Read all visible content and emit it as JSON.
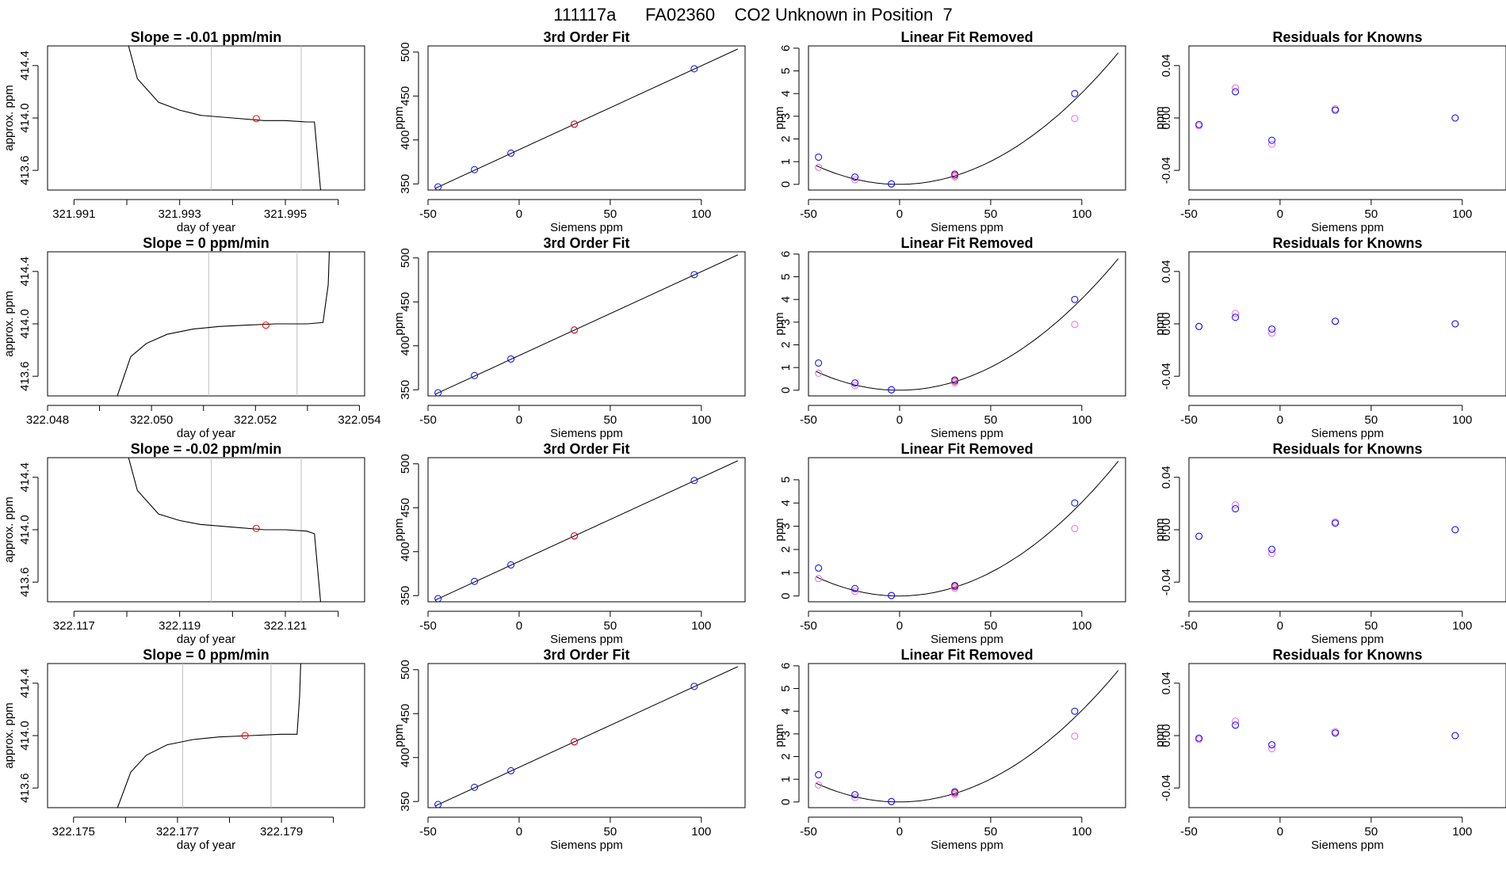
{
  "figure": {
    "title": "111117a      FA02360    CO2 Unknown in Position  7"
  },
  "colors": {
    "axis": "#000000",
    "trace": "#000000",
    "fit": "#000000",
    "vline": "#bfbfbf",
    "point": "#0000ff",
    "marker": "#ff0000",
    "alt_point": "#ee66ee"
  },
  "chart_data": [
    {
      "type": "line",
      "row": 1,
      "col": 1,
      "title": "Slope =  -0.01  ppm/min",
      "xlabel": "day of year",
      "ylabel": "approx. ppm",
      "xlim": [
        321.9905,
        321.9965
      ],
      "ylim": [
        413.45,
        414.55
      ],
      "xticks": [
        321.991,
        321.992,
        321.993,
        321.994,
        321.995,
        321.996
      ],
      "xtick_labels": [
        "321.991",
        "",
        "321.993",
        "",
        "321.995",
        ""
      ],
      "yticks": [
        413.6,
        414.0,
        414.4
      ],
      "ytick_labels": [
        "413.6",
        "414.0",
        "414.4"
      ],
      "vlines": [
        321.9936,
        321.9953
      ],
      "series": [
        {
          "x": [
            321.9918,
            321.9922,
            321.9926,
            321.993,
            321.9934,
            321.994,
            321.9946,
            321.995,
            321.9954,
            321.99555,
            321.9957
          ],
          "y": [
            414.9,
            414.3,
            414.12,
            414.06,
            414.02,
            414.0,
            413.98,
            413.98,
            413.97,
            413.97,
            413.3
          ]
        }
      ],
      "marker": {
        "x": 321.99445,
        "y": 413.995
      }
    },
    {
      "type": "line",
      "row": 2,
      "col": 1,
      "title": "Slope =  0  ppm/min",
      "xlabel": "day of year",
      "ylabel": "approx. ppm",
      "xlim": [
        322.048,
        322.0541
      ],
      "ylim": [
        413.45,
        414.55
      ],
      "xticks": [
        322.048,
        322.049,
        322.05,
        322.051,
        322.052,
        322.053,
        322.054
      ],
      "xtick_labels": [
        "322.048",
        "",
        "322.050",
        "",
        "322.052",
        "",
        "322.054"
      ],
      "yticks": [
        413.6,
        414.0,
        414.4
      ],
      "ytick_labels": [
        "413.6",
        "414.0",
        "414.4"
      ],
      "vlines": [
        322.0511,
        322.0528
      ],
      "series": [
        {
          "x": [
            322.0493,
            322.0496,
            322.0499,
            322.0503,
            322.0508,
            322.0513,
            322.0518,
            322.0524,
            322.053,
            322.0533,
            322.0534,
            322.05345
          ],
          "y": [
            413.4,
            413.75,
            413.85,
            413.92,
            413.96,
            413.98,
            413.99,
            414.0,
            414.0,
            414.01,
            414.3,
            414.9
          ]
        }
      ],
      "marker": {
        "x": 322.0522,
        "y": 413.99
      }
    },
    {
      "type": "line",
      "row": 3,
      "col": 1,
      "title": "Slope =  -0.02  ppm/min",
      "xlabel": "day of year",
      "ylabel": "approx. ppm",
      "xlim": [
        322.1165,
        322.1225
      ],
      "ylim": [
        413.45,
        414.55
      ],
      "xticks": [
        322.117,
        322.118,
        322.119,
        322.12,
        322.121,
        322.122
      ],
      "xtick_labels": [
        "322.117",
        "",
        "322.119",
        "",
        "322.121",
        ""
      ],
      "yticks": [
        413.6,
        414.0,
        414.4
      ],
      "ytick_labels": [
        "413.6",
        "414.0",
        "414.4"
      ],
      "vlines": [
        322.1196,
        322.1213
      ],
      "series": [
        {
          "x": [
            322.1178,
            322.1182,
            322.1186,
            322.119,
            322.1194,
            322.12,
            322.1206,
            322.121,
            322.1214,
            322.12155,
            322.1217
          ],
          "y": [
            414.9,
            414.3,
            414.12,
            414.07,
            414.04,
            414.02,
            414.0,
            414.0,
            413.99,
            413.97,
            413.3
          ]
        }
      ],
      "marker": {
        "x": 322.12045,
        "y": 414.01
      }
    },
    {
      "type": "line",
      "row": 4,
      "col": 1,
      "title": "Slope =  0  ppm/min",
      "xlabel": "day of year",
      "ylabel": "approx. ppm",
      "xlim": [
        322.1745,
        322.1806
      ],
      "ylim": [
        413.45,
        414.55
      ],
      "xticks": [
        322.175,
        322.176,
        322.177,
        322.178,
        322.179,
        322.18
      ],
      "xtick_labels": [
        "322.175",
        "",
        "322.177",
        "",
        "322.179",
        ""
      ],
      "yticks": [
        413.6,
        414.0,
        414.4
      ],
      "ytick_labels": [
        "413.6",
        "414.0",
        "414.4"
      ],
      "vlines": [
        322.1771,
        322.1788
      ],
      "series": [
        {
          "x": [
            322.1758,
            322.1761,
            322.1764,
            322.1768,
            322.1773,
            322.1778,
            322.1784,
            322.179,
            322.1793,
            322.17935,
            322.1794
          ],
          "y": [
            413.4,
            413.72,
            413.85,
            413.93,
            413.97,
            413.99,
            414.0,
            414.01,
            414.01,
            414.3,
            414.9
          ]
        }
      ],
      "marker": {
        "x": 322.1783,
        "y": 414.0
      }
    },
    {
      "type": "scatter",
      "row": 1,
      "col": 2,
      "title": "3rd Order Fit",
      "xlabel": "Siemens ppm",
      "ylabel": "ppm",
      "xlim": [
        -50,
        124
      ],
      "ylim": [
        343,
        507
      ],
      "xticks": [
        -50,
        0,
        50,
        100
      ],
      "xtick_labels": [
        "-50",
        "0",
        "50",
        "100"
      ],
      "yticks": [
        350,
        400,
        450,
        500
      ],
      "ytick_labels": [
        "350",
        "400",
        "450",
        "500"
      ],
      "x": [
        -44.5,
        -24.5,
        -4.5,
        30.3,
        96.1
      ],
      "y": [
        346.6,
        366.2,
        385.0,
        418.0,
        481.0
      ],
      "fit_line": {
        "x": [
          -46,
          120
        ],
        "y": [
          345.0,
          503.5
        ]
      },
      "marker": {
        "x": 30.3,
        "y": 418.0
      }
    },
    {
      "type": "scatter",
      "row": 2,
      "col": 2,
      "title": "3rd Order Fit",
      "xlabel": "Siemens ppm",
      "ylabel": "ppm",
      "xlim": [
        -50,
        124
      ],
      "ylim": [
        343,
        507
      ],
      "xticks": [
        -50,
        0,
        50,
        100
      ],
      "xtick_labels": [
        "-50",
        "0",
        "50",
        "100"
      ],
      "yticks": [
        350,
        400,
        450,
        500
      ],
      "ytick_labels": [
        "350",
        "400",
        "450",
        "500"
      ],
      "x": [
        -44.5,
        -24.5,
        -4.5,
        30.3,
        96.1
      ],
      "y": [
        346.6,
        366.2,
        385.0,
        418.0,
        481.0
      ],
      "fit_line": {
        "x": [
          -46,
          120
        ],
        "y": [
          345.0,
          503.5
        ]
      },
      "marker": {
        "x": 30.3,
        "y": 418.0
      }
    },
    {
      "type": "scatter",
      "row": 3,
      "col": 2,
      "title": "3rd Order Fit",
      "xlabel": "Siemens ppm",
      "ylabel": "ppm",
      "xlim": [
        -50,
        124
      ],
      "ylim": [
        343,
        507
      ],
      "xticks": [
        -50,
        0,
        50,
        100
      ],
      "xtick_labels": [
        "-50",
        "0",
        "50",
        "100"
      ],
      "yticks": [
        350,
        400,
        450,
        500
      ],
      "ytick_labels": [
        "350",
        "400",
        "450",
        "500"
      ],
      "x": [
        -44.5,
        -24.5,
        -4.5,
        30.3,
        96.1
      ],
      "y": [
        346.6,
        366.2,
        385.0,
        418.0,
        481.0
      ],
      "fit_line": {
        "x": [
          -46,
          120
        ],
        "y": [
          345.0,
          503.5
        ]
      },
      "marker": {
        "x": 30.3,
        "y": 418.0
      }
    },
    {
      "type": "scatter",
      "row": 4,
      "col": 2,
      "title": "3rd Order Fit",
      "xlabel": "Siemens ppm",
      "ylabel": "ppm",
      "xlim": [
        -50,
        124
      ],
      "ylim": [
        343,
        507
      ],
      "xticks": [
        -50,
        0,
        50,
        100
      ],
      "xtick_labels": [
        "-50",
        "0",
        "50",
        "100"
      ],
      "yticks": [
        350,
        400,
        450,
        500
      ],
      "ytick_labels": [
        "350",
        "400",
        "450",
        "500"
      ],
      "x": [
        -44.5,
        -24.5,
        -4.5,
        30.3,
        96.1
      ],
      "y": [
        346.6,
        366.2,
        385.0,
        418.0,
        481.0
      ],
      "fit_line": {
        "x": [
          -46,
          120
        ],
        "y": [
          345.0,
          503.5
        ]
      },
      "marker": {
        "x": 30.3,
        "y": 418.0
      }
    },
    {
      "type": "scatter",
      "row": 1,
      "col": 3,
      "title": "Linear Fit Removed",
      "xlabel": "Siemens ppm",
      "ylabel": "ppm",
      "xlim": [
        -50,
        124
      ],
      "ylim": [
        -0.25,
        6.1
      ],
      "xticks": [
        -50,
        0,
        50,
        100
      ],
      "xtick_labels": [
        "-50",
        "0",
        "50",
        "100"
      ],
      "yticks": [
        0,
        1,
        2,
        3,
        4,
        5,
        6
      ],
      "ytick_labels": [
        "0",
        "1",
        "2",
        "3",
        "4",
        "5",
        "6"
      ],
      "x": [
        -44.5,
        -24.5,
        -4.5,
        30.3,
        96.1
      ],
      "y": [
        1.2,
        0.32,
        0.02,
        0.45,
        4.0
      ],
      "x2": [
        -44.5,
        -24.5,
        -4.5,
        30.3,
        96.1
      ],
      "y2": [
        0.75,
        0.2,
        0.02,
        0.33,
        2.9
      ],
      "curve_coef": [
        0.0004,
        0.0003,
        0.0
      ],
      "curve_xlim": [
        -46,
        120
      ],
      "marker": {
        "x": 30.3,
        "y": 0.4
      }
    },
    {
      "type": "scatter",
      "row": 2,
      "col": 3,
      "title": "Linear Fit Removed",
      "xlabel": "Siemens ppm",
      "ylabel": "ppm",
      "xlim": [
        -50,
        124
      ],
      "ylim": [
        -0.25,
        6.1
      ],
      "xticks": [
        -50,
        0,
        50,
        100
      ],
      "xtick_labels": [
        "-50",
        "0",
        "50",
        "100"
      ],
      "yticks": [
        0,
        1,
        2,
        3,
        4,
        5,
        6
      ],
      "ytick_labels": [
        "0",
        "1",
        "2",
        "3",
        "4",
        "5",
        "6"
      ],
      "x": [
        -44.5,
        -24.5,
        -4.5,
        30.3,
        96.1
      ],
      "y": [
        1.2,
        0.32,
        0.02,
        0.45,
        4.0
      ],
      "x2": [
        -44.5,
        -24.5,
        -4.5,
        30.3,
        96.1
      ],
      "y2": [
        0.75,
        0.2,
        0.02,
        0.33,
        2.9
      ],
      "curve_coef": [
        0.0004,
        0.0003,
        0.0
      ],
      "curve_xlim": [
        -46,
        120
      ],
      "marker": {
        "x": 30.3,
        "y": 0.4
      }
    },
    {
      "type": "scatter",
      "row": 3,
      "col": 3,
      "title": "Linear Fit Removed",
      "xlabel": "Siemens ppm",
      "ylabel": "ppm",
      "xlim": [
        -50,
        124
      ],
      "ylim": [
        -0.25,
        5.95
      ],
      "xticks": [
        -50,
        0,
        50,
        100
      ],
      "xtick_labels": [
        "-50",
        "0",
        "50",
        "100"
      ],
      "yticks": [
        0,
        1,
        2,
        3,
        4,
        5
      ],
      "ytick_labels": [
        "0",
        "1",
        "2",
        "3",
        "4",
        "5"
      ],
      "x": [
        -44.5,
        -24.5,
        -4.5,
        30.3,
        96.1
      ],
      "y": [
        1.2,
        0.32,
        0.02,
        0.45,
        4.0
      ],
      "x2": [
        -44.5,
        -24.5,
        -4.5,
        30.3,
        96.1
      ],
      "y2": [
        0.75,
        0.2,
        0.02,
        0.33,
        2.9
      ],
      "curve_coef": [
        0.0004,
        0.0003,
        0.0
      ],
      "curve_xlim": [
        -46,
        120
      ],
      "marker": {
        "x": 30.3,
        "y": 0.4
      }
    },
    {
      "type": "scatter",
      "row": 4,
      "col": 3,
      "title": "Linear Fit Removed",
      "xlabel": "Siemens ppm",
      "ylabel": "ppm",
      "xlim": [
        -50,
        124
      ],
      "ylim": [
        -0.25,
        6.1
      ],
      "xticks": [
        -50,
        0,
        50,
        100
      ],
      "xtick_labels": [
        "-50",
        "0",
        "50",
        "100"
      ],
      "yticks": [
        0,
        1,
        2,
        3,
        4,
        5,
        6
      ],
      "ytick_labels": [
        "0",
        "1",
        "2",
        "3",
        "4",
        "5",
        "6"
      ],
      "x": [
        -44.5,
        -24.5,
        -4.5,
        30.3,
        96.1
      ],
      "y": [
        1.2,
        0.32,
        0.02,
        0.45,
        4.0
      ],
      "x2": [
        -44.5,
        -24.5,
        -4.5,
        30.3,
        96.1
      ],
      "y2": [
        0.75,
        0.2,
        0.02,
        0.33,
        2.9
      ],
      "curve_coef": [
        0.0004,
        0.0003,
        0.0
      ],
      "curve_xlim": [
        -46,
        120
      ],
      "marker": {
        "x": 30.3,
        "y": 0.4
      }
    },
    {
      "type": "scatter",
      "row": 1,
      "col": 4,
      "title": "Residuals for Knowns",
      "xlabel": "Siemens ppm",
      "ylabel": "ppm",
      "xlim": [
        -50,
        124
      ],
      "ylim": [
        -0.055,
        0.055
      ],
      "xticks": [
        -50,
        0,
        50,
        100
      ],
      "xtick_labels": [
        "-50",
        "0",
        "50",
        "100"
      ],
      "yticks": [
        -0.04,
        0.0,
        0.04
      ],
      "ytick_labels": [
        "-0.04",
        "0.00",
        "0.04"
      ],
      "x": [
        -44.5,
        -24.5,
        -4.5,
        30.3,
        96.1
      ],
      "y": [
        -0.005,
        0.02,
        -0.017,
        0.006,
        0.0
      ],
      "x2": [
        -44.5,
        -24.5,
        -4.5,
        30.3,
        96.1
      ],
      "y2": [
        -0.006,
        0.023,
        -0.02,
        0.007,
        0.0
      ]
    },
    {
      "type": "scatter",
      "row": 2,
      "col": 4,
      "title": "Residuals for Knowns",
      "xlabel": "Siemens ppm",
      "ylabel": "ppm",
      "xlim": [
        -50,
        124
      ],
      "ylim": [
        -0.055,
        0.055
      ],
      "xticks": [
        -50,
        0,
        50,
        100
      ],
      "xtick_labels": [
        "-50",
        "0",
        "50",
        "100"
      ],
      "yticks": [
        -0.04,
        0.0,
        0.04
      ],
      "ytick_labels": [
        "-0.04",
        "0.00",
        "0.04"
      ],
      "x": [
        -44.5,
        -24.5,
        -4.5,
        30.3,
        96.1
      ],
      "y": [
        -0.002,
        0.005,
        -0.004,
        0.002,
        0.0
      ],
      "x2": [
        -44.5,
        -24.5,
        -4.5,
        30.3,
        96.1
      ],
      "y2": [
        -0.002,
        0.008,
        -0.007,
        0.002,
        0.0
      ]
    },
    {
      "type": "scatter",
      "row": 3,
      "col": 4,
      "title": "Residuals for Knowns",
      "xlabel": "Siemens ppm",
      "ylabel": "ppm",
      "xlim": [
        -50,
        124
      ],
      "ylim": [
        -0.055,
        0.055
      ],
      "xticks": [
        -50,
        0,
        50,
        100
      ],
      "xtick_labels": [
        "-50",
        "0",
        "50",
        "100"
      ],
      "yticks": [
        -0.04,
        0.0,
        0.04
      ],
      "ytick_labels": [
        "-0.04",
        "0.00",
        "0.04"
      ],
      "x": [
        -44.5,
        -24.5,
        -4.5,
        30.3,
        96.1
      ],
      "y": [
        -0.005,
        0.016,
        -0.015,
        0.005,
        0.0
      ],
      "x2": [
        -44.5,
        -24.5,
        -4.5,
        30.3,
        96.1
      ],
      "y2": [
        -0.005,
        0.019,
        -0.018,
        0.006,
        0.0
      ]
    },
    {
      "type": "scatter",
      "row": 4,
      "col": 4,
      "title": "Residuals for Knowns",
      "xlabel": "Siemens ppm",
      "ylabel": "ppm",
      "xlim": [
        -50,
        124
      ],
      "ylim": [
        -0.055,
        0.055
      ],
      "xticks": [
        -50,
        0,
        50,
        100
      ],
      "xtick_labels": [
        "-50",
        "0",
        "50",
        "100"
      ],
      "yticks": [
        -0.04,
        0.0,
        0.04
      ],
      "ytick_labels": [
        "-0.04",
        "0.00",
        "0.04"
      ],
      "x": [
        -44.5,
        -24.5,
        -4.5,
        30.3,
        96.1
      ],
      "y": [
        -0.002,
        0.008,
        -0.007,
        0.002,
        0.0
      ],
      "x2": [
        -44.5,
        -24.5,
        -4.5,
        30.3,
        96.1
      ],
      "y2": [
        -0.003,
        0.011,
        -0.01,
        0.003,
        0.0
      ]
    }
  ]
}
